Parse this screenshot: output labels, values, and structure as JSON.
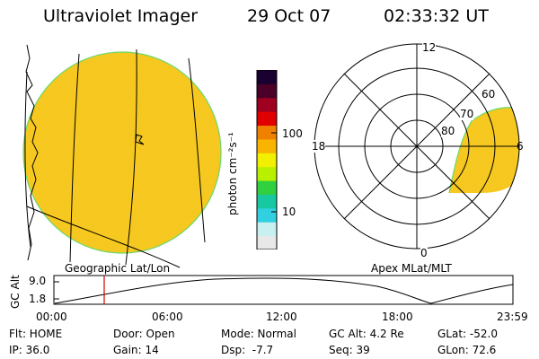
{
  "header": {
    "title": "Ultraviolet Imager",
    "date": "29 Oct 07",
    "time": "02:33:32 UT"
  },
  "colors": {
    "disk_fill": "#f6c81e",
    "disk_edge": "#6cd86c",
    "colorbar": [
      "#e8e8e8",
      "#c8f0f0",
      "#30d0e0",
      "#18c8a0",
      "#30d040",
      "#b8f000",
      "#f0f000",
      "#f8b400",
      "#f08000",
      "#e00000",
      "#a00020",
      "#4a0028",
      "#1a0030"
    ]
  },
  "colorbar": {
    "unit_label": "photon cm⁻²s⁻¹",
    "tick_100": "100",
    "tick_10": "10"
  },
  "geo_panel": {
    "label": "Geographic Lat/Lon"
  },
  "polar_panel": {
    "label": "Apex MLat/MLT",
    "mlt_labels": {
      "top": "12",
      "left": "18",
      "right": "6",
      "bottom": "0"
    },
    "mlat_labels": [
      "60",
      "70",
      "80"
    ]
  },
  "alt_plot": {
    "ylabel": "GC Alt",
    "ytick_high": "9.0",
    "ytick_low": "1.8",
    "xticks": [
      "00:00",
      "06:00",
      "12:00",
      "18:00",
      "23:59"
    ],
    "marker_time": "02:33"
  },
  "info": {
    "flt": "Flt: HOME",
    "ip": "IP: 36.0",
    "door": "Door: Open",
    "gain": "Gain: 14",
    "mode": "Mode: Normal",
    "dsp": "Dsp:  -7.7",
    "gcalt": "GC Alt: 4.2 Re",
    "seq": "Seq: 39",
    "glat": "GLat: -52.0",
    "glon": "GLon: 72.6"
  }
}
